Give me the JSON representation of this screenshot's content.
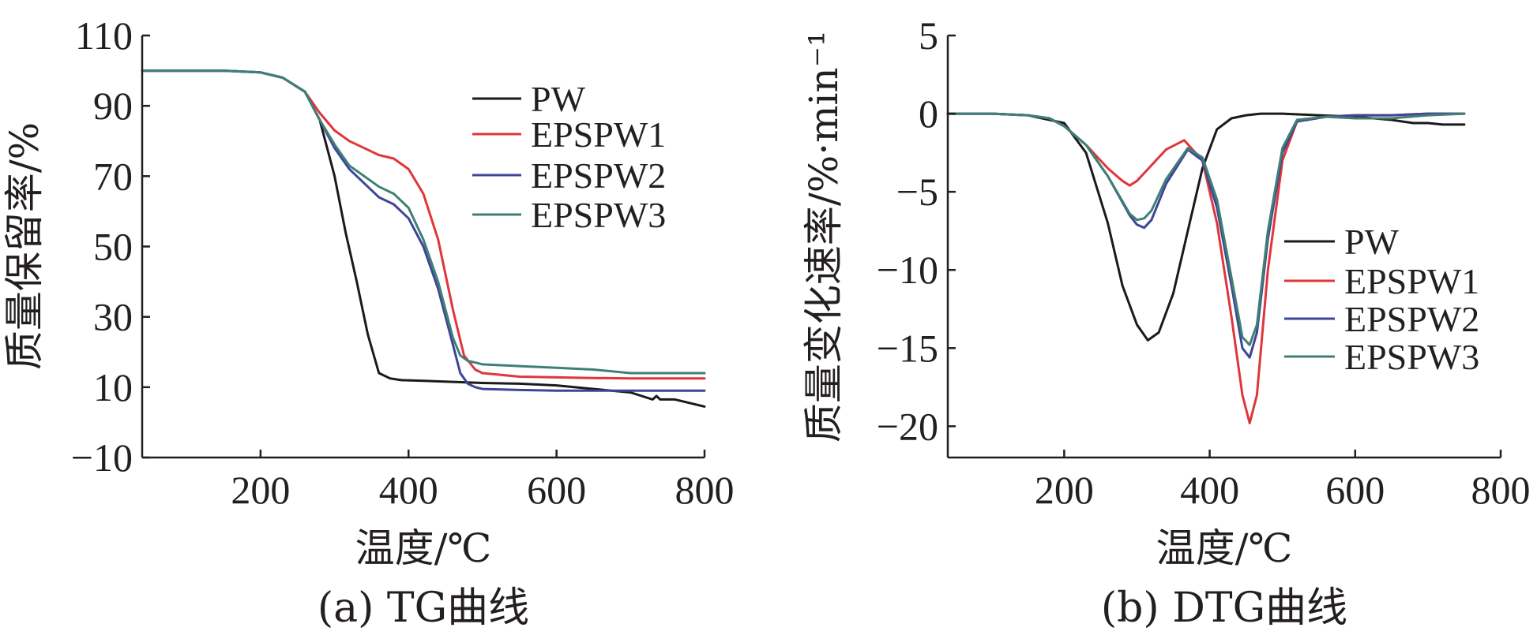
{
  "colors": {
    "PW": "#1a1a1a",
    "EPSPW1": "#e0363a",
    "EPSPW2": "#3f4596",
    "EPSPW3": "#3f8076",
    "axis": "#231f20"
  },
  "chart_data": [
    {
      "type": "line",
      "caption": "(a) TG曲线",
      "xlabel": "温度/℃",
      "ylabel": "质量保留率/%",
      "xlim": [
        40,
        800
      ],
      "ylim": [
        -10,
        110
      ],
      "xticks": [
        200,
        400,
        600,
        800
      ],
      "yticks": [
        110,
        90,
        70,
        50,
        30,
        10,
        -10
      ],
      "ytick_labels": [
        "110",
        "90",
        "70",
        "50",
        "30",
        "10",
        "−10"
      ],
      "legend_position": "top-right",
      "series": [
        {
          "name": "PW",
          "x": [
            40,
            100,
            150,
            200,
            230,
            260,
            280,
            300,
            315,
            330,
            345,
            360,
            375,
            390,
            420,
            460,
            500,
            550,
            600,
            650,
            700,
            730,
            735,
            740,
            760,
            780,
            800
          ],
          "y": [
            100,
            100,
            100,
            99.5,
            98,
            94,
            86,
            70,
            54,
            40,
            25,
            14,
            12.5,
            12,
            11.8,
            11.5,
            11.2,
            11,
            10.5,
            9.5,
            8.5,
            6.5,
            7.5,
            6.5,
            6.5,
            5.5,
            4.5
          ]
        },
        {
          "name": "EPSPW1",
          "x": [
            40,
            100,
            150,
            200,
            230,
            260,
            280,
            300,
            320,
            340,
            360,
            380,
            400,
            420,
            440,
            460,
            475,
            490,
            500,
            550,
            600,
            650,
            700,
            800
          ],
          "y": [
            100,
            100,
            100,
            99.5,
            98,
            94,
            88,
            83,
            80,
            78,
            76,
            75,
            72,
            65,
            52,
            32,
            19,
            15,
            14,
            13,
            12.8,
            12.6,
            12.5,
            12.5
          ]
        },
        {
          "name": "EPSPW2",
          "x": [
            40,
            100,
            150,
            200,
            230,
            260,
            280,
            300,
            320,
            340,
            360,
            380,
            400,
            420,
            440,
            460,
            470,
            480,
            490,
            500,
            550,
            600,
            650,
            700,
            800
          ],
          "y": [
            100,
            100,
            100,
            99.5,
            98,
            94,
            86,
            78,
            72,
            68,
            64,
            62,
            58,
            50,
            38,
            22,
            14,
            11,
            10,
            9.5,
            9.2,
            9,
            9,
            9,
            9
          ]
        },
        {
          "name": "EPSPW3",
          "x": [
            40,
            100,
            150,
            200,
            230,
            260,
            280,
            300,
            320,
            340,
            360,
            380,
            400,
            420,
            440,
            460,
            470,
            480,
            490,
            500,
            550,
            600,
            650,
            700,
            800
          ],
          "y": [
            100,
            100,
            100,
            99.5,
            98,
            94,
            86,
            79,
            73,
            70,
            67,
            65,
            61,
            52,
            40,
            24,
            19,
            17.5,
            17,
            16.5,
            16,
            15.5,
            15,
            14,
            14
          ]
        }
      ]
    },
    {
      "type": "line",
      "caption": "(b) DTG曲线",
      "xlabel": "温度/℃",
      "ylabel": "质量变化速率/%·min⁻¹",
      "xlim": [
        40,
        800
      ],
      "ylim": [
        -22,
        5
      ],
      "xticks": [
        200,
        400,
        600,
        800
      ],
      "yticks": [
        5,
        0,
        -5,
        -10,
        -15,
        -20
      ],
      "ytick_labels": [
        "5",
        "0",
        "−5",
        "−10",
        "−15",
        "−20"
      ],
      "legend_position": "right",
      "series": [
        {
          "name": "PW",
          "x": [
            40,
            100,
            150,
            200,
            230,
            260,
            280,
            300,
            315,
            330,
            350,
            370,
            390,
            410,
            430,
            450,
            470,
            500,
            550,
            600,
            650,
            680,
            700,
            720,
            750
          ],
          "y": [
            0,
            0,
            -0.1,
            -0.6,
            -2.5,
            -7,
            -11,
            -13.5,
            -14.5,
            -14,
            -11.5,
            -7.5,
            -3.5,
            -1,
            -0.3,
            -0.1,
            0,
            0,
            -0.1,
            -0.2,
            -0.4,
            -0.6,
            -0.6,
            -0.7,
            -0.7
          ]
        },
        {
          "name": "EPSPW1",
          "x": [
            40,
            100,
            150,
            180,
            200,
            230,
            260,
            280,
            290,
            300,
            320,
            340,
            365,
            390,
            410,
            430,
            445,
            455,
            465,
            480,
            500,
            520,
            560,
            600,
            650,
            700,
            750
          ],
          "y": [
            0,
            0,
            -0.1,
            -0.3,
            -0.8,
            -2,
            -3.5,
            -4.3,
            -4.6,
            -4.3,
            -3.3,
            -2.3,
            -1.7,
            -3,
            -7,
            -13,
            -18,
            -19.8,
            -18,
            -10,
            -3,
            -0.5,
            -0.2,
            -0.1,
            -0.1,
            0,
            0
          ]
        },
        {
          "name": "EPSPW2",
          "x": [
            40,
            100,
            150,
            180,
            200,
            230,
            260,
            290,
            300,
            310,
            320,
            340,
            370,
            390,
            410,
            430,
            445,
            455,
            465,
            480,
            500,
            520,
            560,
            600,
            650,
            700,
            750
          ],
          "y": [
            0,
            0,
            -0.1,
            -0.3,
            -0.8,
            -2,
            -4,
            -6.5,
            -7.1,
            -7.3,
            -6.8,
            -4.5,
            -2.3,
            -3,
            -6,
            -11,
            -15,
            -15.6,
            -14,
            -8,
            -2.5,
            -0.5,
            -0.2,
            -0.1,
            -0.1,
            0,
            0
          ]
        },
        {
          "name": "EPSPW3",
          "x": [
            40,
            100,
            150,
            180,
            200,
            230,
            260,
            290,
            300,
            310,
            320,
            340,
            370,
            390,
            410,
            430,
            445,
            455,
            465,
            480,
            500,
            520,
            560,
            600,
            650,
            700,
            750
          ],
          "y": [
            0,
            0,
            -0.1,
            -0.3,
            -0.8,
            -2,
            -4,
            -6.4,
            -6.8,
            -6.7,
            -6.2,
            -4.2,
            -2.2,
            -2.8,
            -5.5,
            -10.5,
            -14.3,
            -14.8,
            -13.5,
            -7.5,
            -2.2,
            -0.4,
            -0.2,
            -0.3,
            -0.3,
            -0.1,
            0
          ]
        }
      ]
    }
  ]
}
